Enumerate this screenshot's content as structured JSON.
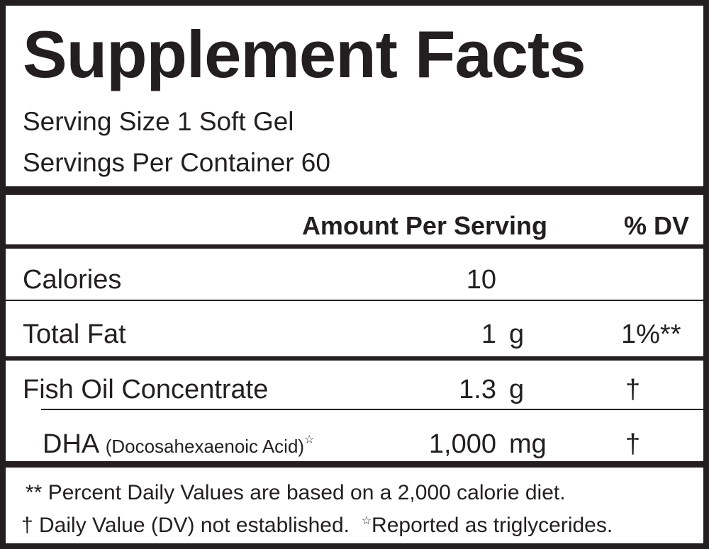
{
  "header": {
    "title": "Supplement Facts",
    "serving_size": "Serving Size 1 Soft Gel",
    "servings_per_container": "Servings Per Container 60"
  },
  "table": {
    "columns": {
      "amount": "Amount Per Serving",
      "dv": "% DV"
    },
    "rows": [
      {
        "name": "Calories",
        "amount": "10"
      },
      {
        "name": "Total Fat",
        "amount": "1",
        "unit": "g",
        "dv": "1%**"
      },
      {
        "name": "Fish Oil Concentrate",
        "amount": "1.3",
        "unit": "g",
        "dv": "†"
      },
      {
        "name": "DHA",
        "note": "(Docosahexaenoic Acid)",
        "mark": "☆",
        "amount": "1,000",
        "unit": "mg",
        "dv": "†"
      }
    ]
  },
  "footnotes": {
    "line1": "** Percent Daily Values are based on a 2,000 calorie diet.",
    "dagger": "† Daily Value (DV) not established.",
    "star": "☆",
    "star_text": "Reported as triglycerides."
  }
}
